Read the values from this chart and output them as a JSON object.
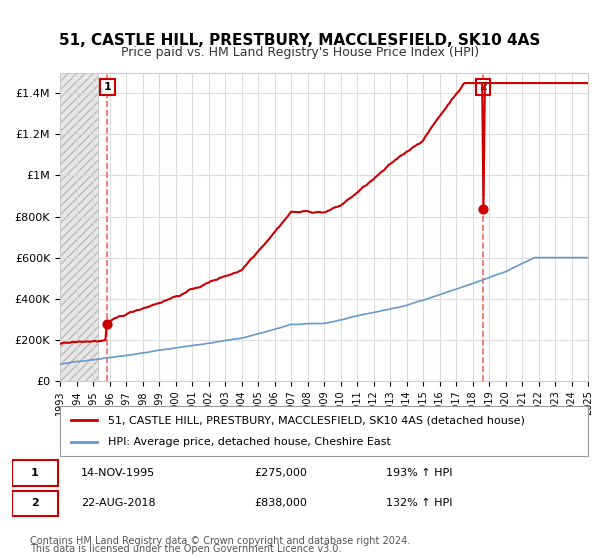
{
  "title": "51, CASTLE HILL, PRESTBURY, MACCLESFIELD, SK10 4AS",
  "subtitle": "Price paid vs. HM Land Registry's House Price Index (HPI)",
  "ylabel": "",
  "xlabel": "",
  "ylim": [
    0,
    1500000
  ],
  "yticks": [
    0,
    200000,
    400000,
    600000,
    800000,
    1000000,
    1200000,
    1400000
  ],
  "ytick_labels": [
    "£0",
    "£200K",
    "£400K",
    "£600K",
    "£800K",
    "£1M",
    "£1.2M",
    "£1.4M"
  ],
  "sale1_date": "14-NOV-1995",
  "sale1_price": 275000,
  "sale1_pct": "193%",
  "sale2_date": "22-AUG-2018",
  "sale2_price": 838000,
  "sale2_pct": "132%",
  "legend_line1": "51, CASTLE HILL, PRESTBURY, MACCLESFIELD, SK10 4AS (detached house)",
  "legend_line2": "HPI: Average price, detached house, Cheshire East",
  "footer1": "Contains HM Land Registry data © Crown copyright and database right 2024.",
  "footer2": "This data is licensed under the Open Government Licence v3.0.",
  "line_color": "#cc0000",
  "hpi_color": "#6699cc",
  "marker_color": "#cc0000",
  "dashed_line_color": "#ff6666",
  "background_hatch_color": "#e8e8e8",
  "title_fontsize": 11,
  "subtitle_fontsize": 9,
  "tick_fontsize": 8,
  "legend_fontsize": 8,
  "footer_fontsize": 7,
  "x_start_year": 1993,
  "x_end_year": 2025,
  "sale1_x": 1995.87,
  "sale2_x": 2018.64
}
